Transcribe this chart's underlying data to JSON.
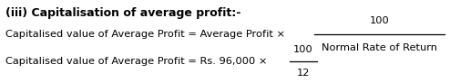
{
  "bg_color": "#ffffff",
  "title_bold": "(iii) Capitalisation of average profit:-",
  "line1_left": "Capitalised value of Average Profit = Average Profit × ",
  "line1_num": "100",
  "line1_den": "Normal Rate of Return",
  "line2_left": "Capitalised value of Average Profit = Rs. 96,000 × ",
  "line2_num": "100",
  "line2_den": "12",
  "font_size_title": 9.0,
  "font_size_body": 8.2
}
